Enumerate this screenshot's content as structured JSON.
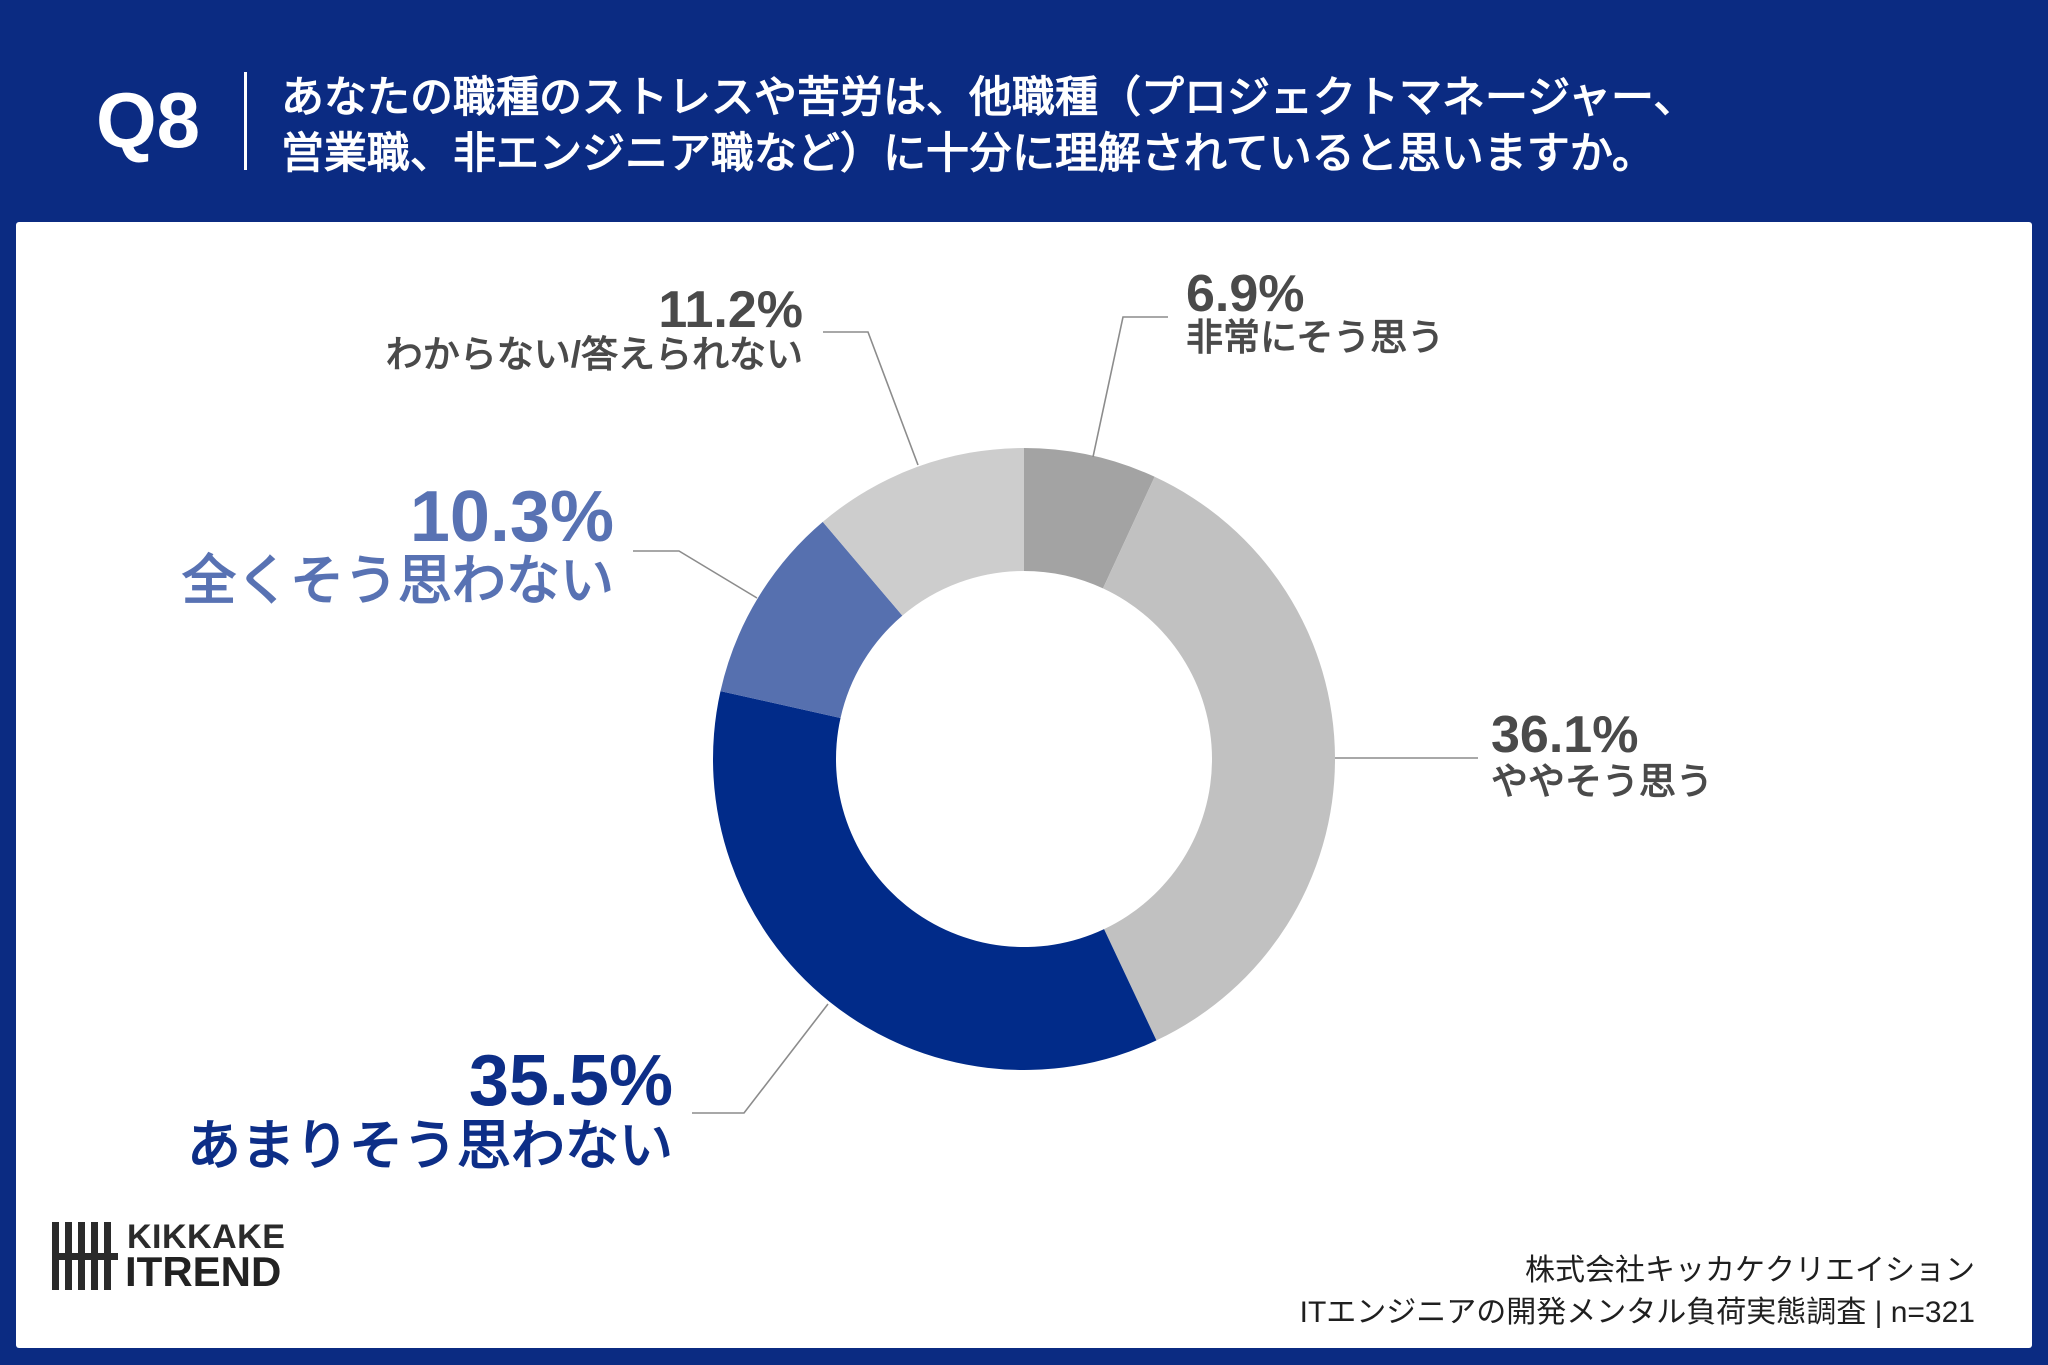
{
  "page": {
    "background_color": "#0b2b82",
    "panel_color": "#ffffff"
  },
  "header": {
    "question_number": "Q8",
    "question_lines": [
      "あなたの職種のストレスや苦労は、他職種（プロジェクトマネージャー、",
      "営業職、非エンジニア職など）に十分に理解されていると思いますか。"
    ]
  },
  "chart_data": {
    "type": "pie",
    "donut": true,
    "categories": [
      "非常にそう思う",
      "ややそう思う",
      "あまりそう思わない",
      "全くそう思わない",
      "わからない/答えられない"
    ],
    "values": [
      6.9,
      36.1,
      35.5,
      10.3,
      11.2
    ],
    "value_labels": [
      "6.9%",
      "36.1%",
      "35.5%",
      "10.3%",
      "11.2%"
    ],
    "colors": [
      "#a3a3a3",
      "#c1c1c1",
      "#012b89",
      "#5670af",
      "#cdcdcd"
    ],
    "label_colors": [
      "#4a4a4a",
      "#4a4a4a",
      "#0d2e87",
      "#5872b3",
      "#4a4a4a"
    ],
    "leader_line_color": "#8c8c8c"
  },
  "logo": {
    "name_line1": "KIKKAKE",
    "name_line2": "ITREND",
    "icon": "tally-mark-icon",
    "color": "#2b2b2b"
  },
  "footer": {
    "company": "株式会社キッカケクリエイション",
    "survey_note": "ITエンジニアの開発メンタル負荷実態調査 | n=321"
  }
}
